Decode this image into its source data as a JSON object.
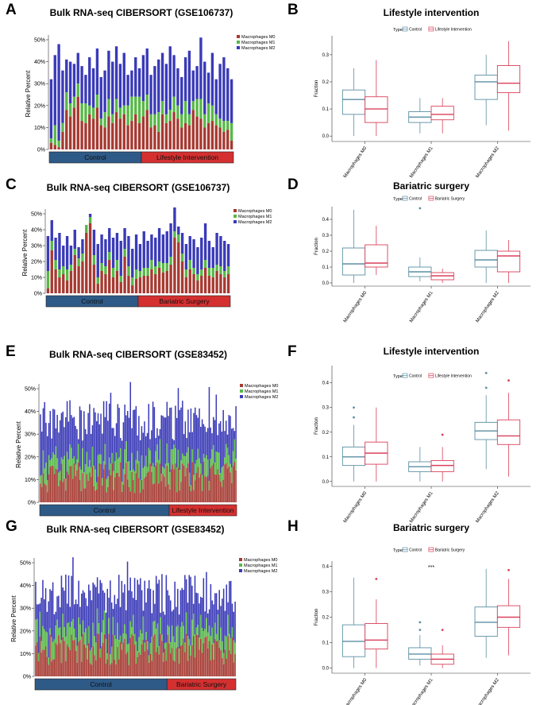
{
  "panels": {
    "A": {
      "letter": "A"
    },
    "B": {
      "letter": "B"
    },
    "C": {
      "letter": "C"
    },
    "D": {
      "letter": "D"
    },
    "E": {
      "letter": "E"
    },
    "F": {
      "letter": "F"
    },
    "G": {
      "letter": "G"
    },
    "H": {
      "letter": "H"
    }
  },
  "colors": {
    "m0": "#a63a32",
    "m1": "#57b847",
    "m2": "#3a3ab8",
    "control_bar": "#2e5a87",
    "treatment_bar": "#d43030",
    "control_box": "#5b8fa3",
    "treatment_box": "#d9405a"
  },
  "chart_data": [
    {
      "id": "A",
      "type": "bar",
      "stacked": true,
      "title": "Bulk RNA-seq CIBERSORT (GSE106737)",
      "ylabel": "Relative Percent",
      "yticks": [
        "0%",
        "10%",
        "20%",
        "30%",
        "40%",
        "50%"
      ],
      "ylim": [
        0,
        50
      ],
      "legend": [
        "Macrophages M0",
        "Macrophages M1",
        "Macrophages M2"
      ],
      "groups": [
        {
          "name": "Control",
          "count": 24
        },
        {
          "name": "Lifestyle Intervention",
          "count": 24
        }
      ],
      "totals": [
        32,
        43,
        48,
        36,
        41,
        40,
        39,
        44,
        38,
        34,
        42,
        37,
        46,
        33,
        36,
        45,
        40,
        47,
        39,
        44,
        34,
        36,
        42,
        37,
        43,
        46,
        34,
        38,
        41,
        44,
        39,
        47,
        43,
        37,
        33,
        42,
        45,
        36,
        38,
        51,
        40,
        35,
        44,
        32,
        39,
        42,
        37,
        32
      ],
      "m0": [
        3,
        2,
        1,
        8,
        18,
        15,
        19,
        24,
        13,
        12,
        16,
        14,
        19,
        11,
        10,
        15,
        12,
        17,
        14,
        16,
        11,
        13,
        16,
        12,
        15,
        18,
        10,
        11,
        8,
        16,
        12,
        13,
        17,
        14,
        10,
        12,
        11,
        18,
        15,
        14,
        10,
        12,
        13,
        11,
        10,
        8,
        9,
        4
      ],
      "m1": [
        2,
        9,
        3,
        4,
        8,
        6,
        5,
        6,
        8,
        9,
        4,
        5,
        6,
        3,
        7,
        8,
        4,
        6,
        5,
        4,
        9,
        11,
        8,
        12,
        7,
        7,
        6,
        5,
        9,
        6,
        4,
        5,
        7,
        6,
        6,
        10,
        5,
        4,
        8,
        9,
        6,
        9,
        7,
        5,
        4,
        5,
        4,
        8
      ]
    },
    {
      "id": "C",
      "type": "bar",
      "stacked": true,
      "title": "Bulk RNA-seq CIBERSORT (GSE106737)",
      "ylabel": "Relative Percent",
      "yticks": [
        "0%",
        "10%",
        "20%",
        "30%",
        "40%",
        "50%"
      ],
      "ylim": [
        0,
        50
      ],
      "legend": [
        "Macrophages M0",
        "Macrophages M1",
        "Macrophages M2"
      ],
      "groups": [
        {
          "name": "Control",
          "count": 24
        },
        {
          "name": "Bariatric Surgery",
          "count": 24
        }
      ],
      "totals": [
        36,
        46,
        35,
        38,
        30,
        36,
        30,
        40,
        29,
        34,
        42,
        50,
        40,
        31,
        37,
        34,
        41,
        35,
        38,
        33,
        41,
        36,
        28,
        37,
        31,
        39,
        33,
        37,
        35,
        41,
        37,
        39,
        44,
        54,
        42,
        38,
        31,
        36,
        34,
        29,
        35,
        44,
        33,
        29,
        38,
        36,
        33,
        31
      ],
      "m0": [
        3,
        27,
        15,
        10,
        12,
        8,
        14,
        24,
        17,
        20,
        38,
        44,
        18,
        6,
        14,
        12,
        21,
        10,
        14,
        7,
        23,
        11,
        5,
        9,
        10,
        11,
        11,
        15,
        12,
        16,
        13,
        14,
        18,
        35,
        32,
        20,
        10,
        15,
        12,
        8,
        11,
        16,
        11,
        10,
        14,
        12,
        10,
        12
      ],
      "m1": [
        11,
        6,
        6,
        5,
        5,
        7,
        4,
        4,
        5,
        5,
        5,
        4,
        6,
        4,
        5,
        5,
        5,
        6,
        7,
        4,
        5,
        6,
        5,
        6,
        4,
        5,
        5,
        6,
        5,
        4,
        6,
        5,
        5,
        4,
        5,
        5,
        5,
        6,
        4,
        4,
        4,
        5,
        5,
        6,
        4,
        5,
        4,
        5
      ]
    },
    {
      "id": "E",
      "type": "bar",
      "stacked": true,
      "title": "Bulk RNA-seq CIBERSORT (GSE83452)",
      "ylabel": "Relative Percent",
      "yticks": [
        "0%",
        "10%",
        "20%",
        "30%",
        "40%",
        "50%"
      ],
      "ylim": [
        0,
        50
      ],
      "legend": [
        "Macrophages M0",
        "Macrophages M1",
        "Macrophages M2"
      ],
      "groups": [
        {
          "name": "Control",
          "count": 92
        },
        {
          "name": "Lifestyle Intervention",
          "count": 48
        }
      ],
      "seed": 11,
      "mean_total": 36,
      "spread_total": 9,
      "mean_m0": 11,
      "mean_m1": 7
    },
    {
      "id": "G",
      "type": "bar",
      "stacked": true,
      "title": "Bulk RNA-seq CIBERSORT (GSE83452)",
      "ylabel": "Relative Percent",
      "yticks": [
        "0%",
        "10%",
        "20%",
        "30%",
        "40%",
        "50%"
      ],
      "ylim": [
        0,
        50
      ],
      "legend": [
        "Macrophages M0",
        "Macrophages M1",
        "Macrophages M2"
      ],
      "groups": [
        {
          "name": "Control",
          "count": 92
        },
        {
          "name": "Bariatric Surgery",
          "count": 48
        }
      ],
      "seed": 29,
      "mean_total": 36,
      "spread_total": 9,
      "mean_m0": 12,
      "mean_m1": 7
    },
    {
      "id": "B",
      "type": "box",
      "title": "Lifestyle intervention",
      "ylabel": "Fraction",
      "legend_title": "Type",
      "legend": [
        "Control",
        "Lifestyle Intervention"
      ],
      "categories": [
        "Macrophages M0",
        "Macrophages M1",
        "Macrophages M2"
      ],
      "yticks": [
        "0.0",
        "0.1",
        "0.2",
        "0.3"
      ],
      "ylim": [
        -0.02,
        0.37
      ],
      "series": [
        {
          "name": "Control",
          "boxes": [
            {
              "min": 0.0,
              "q1": 0.08,
              "median": 0.135,
              "q3": 0.17,
              "max": 0.25,
              "outliers": []
            },
            {
              "min": 0.01,
              "q1": 0.05,
              "median": 0.07,
              "q3": 0.09,
              "max": 0.14,
              "outliers": []
            },
            {
              "min": 0.04,
              "q1": 0.135,
              "median": 0.2,
              "q3": 0.225,
              "max": 0.3,
              "outliers": []
            }
          ]
        },
        {
          "name": "Lifestyle Intervention",
          "boxes": [
            {
              "min": 0.0,
              "q1": 0.05,
              "median": 0.1,
              "q3": 0.145,
              "max": 0.28,
              "outliers": []
            },
            {
              "min": 0.01,
              "q1": 0.06,
              "median": 0.08,
              "q3": 0.11,
              "max": 0.14,
              "outliers": []
            },
            {
              "min": 0.02,
              "q1": 0.16,
              "median": 0.195,
              "q3": 0.26,
              "max": 0.35,
              "outliers": []
            }
          ]
        }
      ]
    },
    {
      "id": "D",
      "type": "box",
      "title": "Bariatric surgery",
      "ylabel": "Fraction",
      "legend_title": "Type",
      "legend": [
        "Control",
        "Bariatric Surgery"
      ],
      "categories": [
        "Macrophages M0",
        "Macrophages M1",
        "Macrophages M2"
      ],
      "yticks": [
        "0.0",
        "0.1",
        "0.2",
        "0.3",
        "0.4"
      ],
      "ylim": [
        -0.02,
        0.48
      ],
      "series": [
        {
          "name": "Control",
          "boxes": [
            {
              "min": 0.0,
              "q1": 0.05,
              "median": 0.12,
              "q3": 0.22,
              "max": 0.46,
              "outliers": []
            },
            {
              "min": 0.01,
              "q1": 0.04,
              "median": 0.07,
              "q3": 0.1,
              "max": 0.16,
              "outliers": [
                0.47
              ]
            },
            {
              "min": 0.0,
              "q1": 0.1,
              "median": 0.145,
              "q3": 0.205,
              "max": 0.33,
              "outliers": []
            }
          ]
        },
        {
          "name": "Bariatric Surgery",
          "boxes": [
            {
              "min": 0.05,
              "q1": 0.1,
              "median": 0.125,
              "q3": 0.24,
              "max": 0.36,
              "outliers": []
            },
            {
              "min": 0.0,
              "q1": 0.02,
              "median": 0.045,
              "q3": 0.065,
              "max": 0.09,
              "outliers": []
            },
            {
              "min": 0.0,
              "q1": 0.07,
              "median": 0.17,
              "q3": 0.2,
              "max": 0.27,
              "outliers": []
            }
          ]
        }
      ]
    },
    {
      "id": "F",
      "type": "box",
      "title": "Lifestyle intervention",
      "ylabel": "Fraction",
      "legend_title": "Type",
      "legend": [
        "Control",
        "Lifestyle Intervention"
      ],
      "categories": [
        "Macrophages M0",
        "Macrophages M1",
        "Macrophages M2"
      ],
      "yticks": [
        "0.0",
        "0.1",
        "0.2",
        "0.3",
        "0.4"
      ],
      "ylim": [
        -0.02,
        0.47
      ],
      "series": [
        {
          "name": "Control",
          "boxes": [
            {
              "min": 0.0,
              "q1": 0.065,
              "median": 0.1,
              "q3": 0.14,
              "max": 0.23,
              "outliers": [
                0.26,
                0.3
              ]
            },
            {
              "min": 0.0,
              "q1": 0.04,
              "median": 0.06,
              "q3": 0.08,
              "max": 0.14,
              "outliers": []
            },
            {
              "min": 0.05,
              "q1": 0.17,
              "median": 0.205,
              "q3": 0.24,
              "max": 0.35,
              "outliers": [
                0.38,
                0.44
              ]
            }
          ]
        },
        {
          "name": "Lifestyle Intervention",
          "boxes": [
            {
              "min": 0.0,
              "q1": 0.07,
              "median": 0.115,
              "q3": 0.16,
              "max": 0.3,
              "outliers": []
            },
            {
              "min": 0.0,
              "q1": 0.04,
              "median": 0.065,
              "q3": 0.085,
              "max": 0.14,
              "outliers": [
                0.19
              ]
            },
            {
              "min": 0.02,
              "q1": 0.15,
              "median": 0.185,
              "q3": 0.25,
              "max": 0.36,
              "outliers": [
                0.41
              ]
            }
          ]
        }
      ]
    },
    {
      "id": "H",
      "type": "box",
      "title": "Bariatric surgery",
      "ylabel": "Fraction",
      "legend_title": "Type",
      "legend": [
        "Control",
        "Bariatric Surgery"
      ],
      "categories": [
        "Macrophages M0",
        "Macrophages M1",
        "Macrophages M2"
      ],
      "yticks": [
        "0.0",
        "0.1",
        "0.2",
        "0.3",
        "0.4"
      ],
      "ylim": [
        -0.02,
        0.42
      ],
      "annotation": "***",
      "series": [
        {
          "name": "Control",
          "boxes": [
            {
              "min": 0.0,
              "q1": 0.045,
              "median": 0.105,
              "q3": 0.17,
              "max": 0.355,
              "outliers": []
            },
            {
              "min": 0.01,
              "q1": 0.035,
              "median": 0.055,
              "q3": 0.08,
              "max": 0.13,
              "outliers": [
                0.15,
                0.18
              ]
            },
            {
              "min": 0.04,
              "q1": 0.125,
              "median": 0.18,
              "q3": 0.24,
              "max": 0.39,
              "outliers": []
            }
          ]
        },
        {
          "name": "Bariatric Surgery",
          "boxes": [
            {
              "min": 0.0,
              "q1": 0.075,
              "median": 0.11,
              "q3": 0.175,
              "max": 0.27,
              "outliers": [
                0.35
              ]
            },
            {
              "min": 0.0,
              "q1": 0.015,
              "median": 0.035,
              "q3": 0.055,
              "max": 0.09,
              "outliers": [
                0.15
              ]
            },
            {
              "min": 0.05,
              "q1": 0.16,
              "median": 0.2,
              "q3": 0.245,
              "max": 0.35,
              "outliers": [
                0.385
              ]
            }
          ]
        }
      ]
    }
  ]
}
